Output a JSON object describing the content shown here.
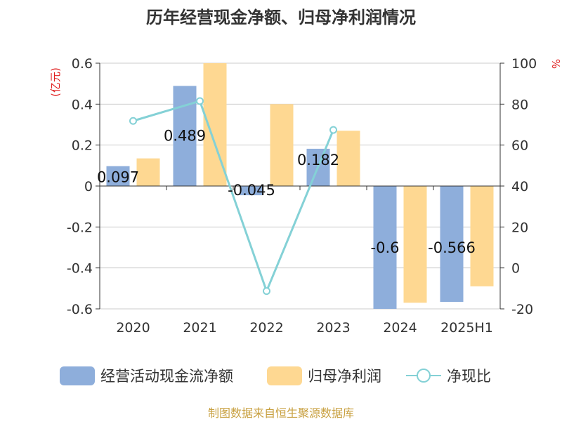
{
  "chart_data": {
    "type": "bar",
    "title": "历年经营现金净额、归母净利润情况",
    "categories": [
      "2020",
      "2021",
      "2022",
      "2023",
      "2024",
      "2025H1"
    ],
    "y_left": {
      "unit": "(亿元)",
      "ylim": [
        -0.6,
        0.6
      ],
      "ticks": [
        0.6,
        0.4,
        0.2,
        0,
        -0.2,
        -0.4,
        -0.6
      ]
    },
    "y_right": {
      "unit": "%",
      "ylim": [
        -20,
        100
      ],
      "ticks": [
        100,
        80,
        60,
        40,
        20,
        0,
        -20
      ]
    },
    "series": [
      {
        "name": "经营活动现金流净额",
        "kind": "bar",
        "axis": "left",
        "color": "#8eaedb",
        "values": [
          0.097,
          0.489,
          -0.045,
          0.182,
          -0.6,
          -0.566
        ],
        "labels": [
          "0.097",
          "0.489",
          "-0.045",
          "0.182",
          "-0.6",
          "-0.566"
        ]
      },
      {
        "name": "归母净利润",
        "kind": "bar",
        "axis": "left",
        "color": "#fed892",
        "values": [
          0.135,
          0.6,
          0.4,
          0.27,
          -0.57,
          -0.49
        ]
      },
      {
        "name": "净现比",
        "kind": "line",
        "axis": "right",
        "color": "#84d1d6",
        "values": [
          71.8,
          81.5,
          -11.3,
          67.4,
          null,
          null
        ]
      }
    ],
    "legend": "bottom",
    "grid": true,
    "source": "制图数据来自恒生聚源数据库"
  }
}
